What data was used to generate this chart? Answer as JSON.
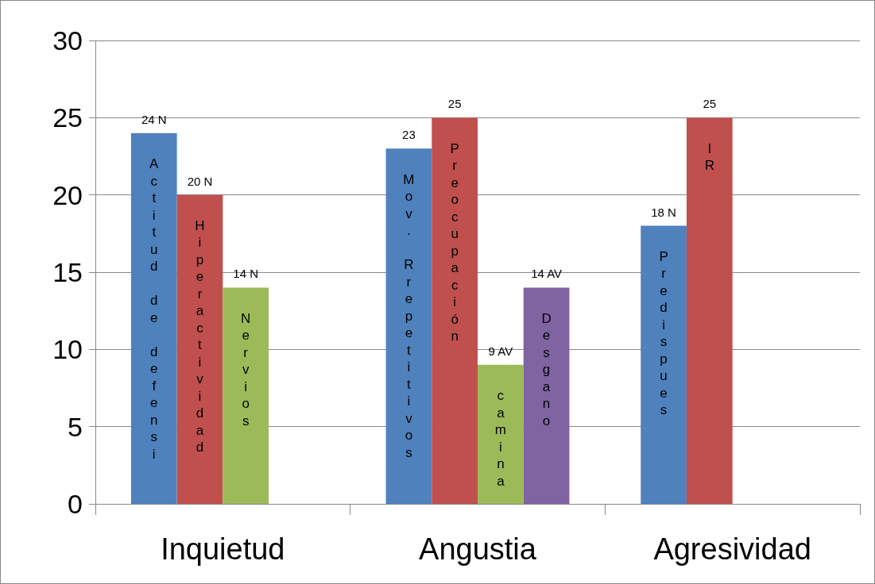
{
  "chart_data": {
    "type": "bar",
    "categories": [
      "Inquietud",
      "Angustia",
      "Agresividad"
    ],
    "series": [
      {
        "color": "#4f81bd",
        "values": [
          24,
          23,
          18
        ],
        "value_labels": [
          "24 N",
          "23",
          "18 N"
        ]
      },
      {
        "color": "#c0504d",
        "values": [
          20,
          25,
          25
        ],
        "value_labels": [
          "20 N",
          "25",
          "25"
        ]
      },
      {
        "color": "#9bbb59",
        "values": [
          14,
          9,
          null
        ],
        "value_labels": [
          "14 N",
          "9 AV",
          null
        ]
      },
      {
        "color": "#8064a2",
        "values": [
          null,
          14,
          null
        ],
        "value_labels": [
          null,
          "14 AV",
          null
        ]
      }
    ],
    "annotations": [
      "Actitud de defensi",
      "Hiperactividad",
      "Nervios",
      "Mov. Rrepetitivos",
      "Preocupación",
      "camina",
      "Desgano",
      "Predispues",
      "IR"
    ],
    "ylim": [
      0,
      30
    ],
    "yticks": [
      0,
      5,
      10,
      15,
      20,
      25,
      30
    ],
    "grid": "y"
  }
}
